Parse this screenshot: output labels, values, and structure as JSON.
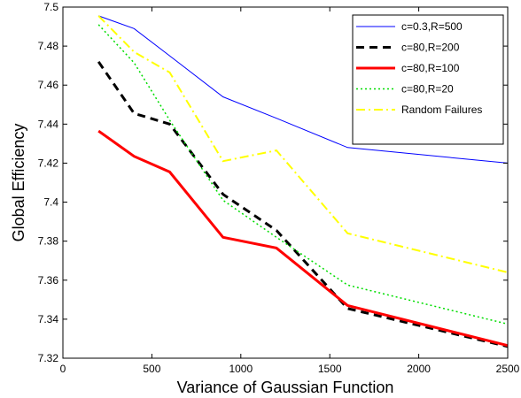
{
  "chart_data": {
    "type": "line",
    "title": "",
    "xlabel": "Variance of Gaussian Function",
    "ylabel": "Global Efficiency",
    "xlim": [
      0,
      2500
    ],
    "ylim": [
      7.32,
      7.5
    ],
    "xticks": [
      0,
      500,
      1000,
      1500,
      2000,
      2500
    ],
    "yticks": [
      7.32,
      7.34,
      7.36,
      7.38,
      7.4,
      7.42,
      7.44,
      7.46,
      7.48,
      7.5
    ],
    "grid": false,
    "legend_position": "top-right",
    "series": [
      {
        "name": "c=0.3,R=500",
        "color": "#0000ff",
        "style": "solid",
        "width": 1,
        "x": [
          200,
          400,
          600,
          900,
          1200,
          1600,
          2500
        ],
        "y": [
          7.4955,
          7.489,
          7.475,
          7.454,
          7.443,
          7.428,
          7.42
        ]
      },
      {
        "name": "c=80,R=200",
        "color": "#000000",
        "style": "dashed",
        "width": 3,
        "x": [
          200,
          400,
          600,
          900,
          1200,
          1600,
          2500
        ],
        "y": [
          7.472,
          7.4455,
          7.44,
          7.404,
          7.3855,
          7.3455,
          7.326
        ]
      },
      {
        "name": "c=80,R=100",
        "color": "#ff0000",
        "style": "solid",
        "width": 3,
        "x": [
          200,
          400,
          600,
          900,
          1200,
          1600,
          2500
        ],
        "y": [
          7.4365,
          7.4235,
          7.4155,
          7.382,
          7.3765,
          7.347,
          7.3265
        ]
      },
      {
        "name": "c=80,R=20",
        "color": "#00dd00",
        "style": "dotted",
        "width": 1.5,
        "x": [
          200,
          400,
          600,
          900,
          1200,
          1600,
          2500
        ],
        "y": [
          7.491,
          7.4715,
          7.442,
          7.401,
          7.382,
          7.3575,
          7.3375
        ]
      },
      {
        "name": "Random Failures",
        "color": "#ffff00",
        "style": "dashdot",
        "width": 2,
        "x": [
          200,
          400,
          600,
          900,
          1200,
          1600,
          2500
        ],
        "y": [
          7.4955,
          7.477,
          7.4665,
          7.421,
          7.4265,
          7.384,
          7.364
        ]
      }
    ]
  }
}
